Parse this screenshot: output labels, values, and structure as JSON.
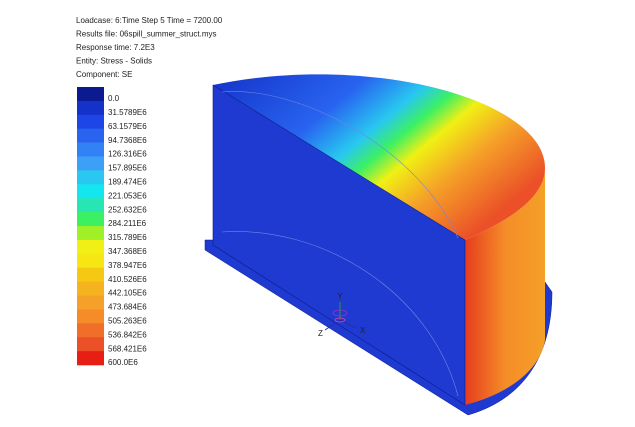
{
  "header": {
    "lines": [
      "Loadcase: 6:Time Step 5 Time = 7200.00",
      "Results file: 06spill_summer_struct.mys",
      "Response time: 7.2E3",
      "Entity: Stress - Solids",
      "Component: SE"
    ]
  },
  "legend": {
    "entries": [
      {
        "label": "0.0",
        "color": "#0b1a8e"
      },
      {
        "label": "31.5789E6",
        "color": "#1432c8"
      },
      {
        "label": "63.1579E6",
        "color": "#1e46e6"
      },
      {
        "label": "94.7368E6",
        "color": "#2864f0"
      },
      {
        "label": "126.316E6",
        "color": "#3282f5"
      },
      {
        "label": "157.895E6",
        "color": "#3ca0f8"
      },
      {
        "label": "189.474E6",
        "color": "#28c8f0"
      },
      {
        "label": "221.053E6",
        "color": "#14e6f0"
      },
      {
        "label": "252.632E6",
        "color": "#28e6b4"
      },
      {
        "label": "284.211E6",
        "color": "#3cf064"
      },
      {
        "label": "315.789E6",
        "color": "#a0f028"
      },
      {
        "label": "347.368E6",
        "color": "#f0f014"
      },
      {
        "label": "378.947E6",
        "color": "#f5e614"
      },
      {
        "label": "410.526E6",
        "color": "#f5c814"
      },
      {
        "label": "442.105E6",
        "color": "#f5b41e"
      },
      {
        "label": "473.684E6",
        "color": "#f5a028"
      },
      {
        "label": "505.263E6",
        "color": "#f58c28"
      },
      {
        "label": "536.842E6",
        "color": "#f06e28"
      },
      {
        "label": "568.421E6",
        "color": "#eb5028"
      },
      {
        "label": "600.0E6",
        "color": "#e61e14"
      }
    ]
  },
  "triad": {
    "x": "X",
    "y": "Y",
    "z": "Z"
  }
}
